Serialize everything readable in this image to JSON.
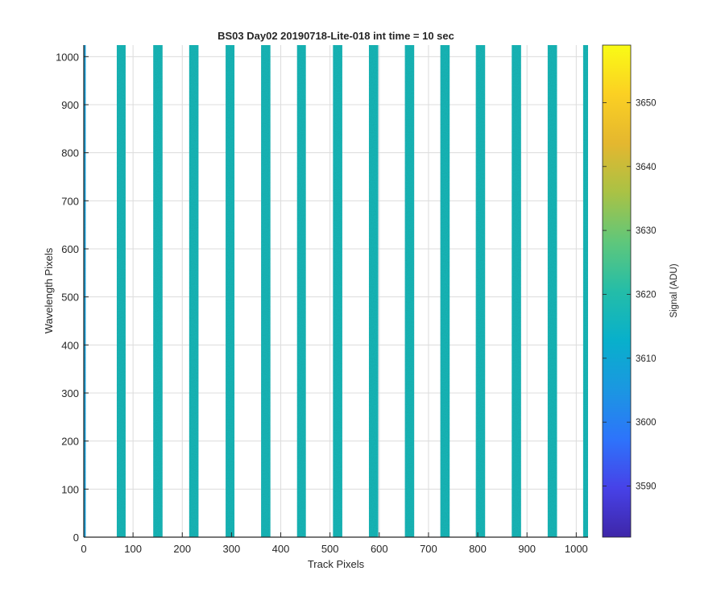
{
  "chart_data": {
    "type": "heatmap",
    "title": "BS03 Day02 20190718-Lite-018 int time = 10 sec",
    "xlabel": "Track Pixels",
    "ylabel": "Wavelength Pixels",
    "xlim": [
      0,
      1024
    ],
    "ylim": [
      0,
      1024
    ],
    "xticks": [
      0,
      100,
      200,
      300,
      400,
      500,
      600,
      700,
      800,
      900,
      1000
    ],
    "yticks": [
      0,
      100,
      200,
      300,
      400,
      500,
      600,
      700,
      800,
      900,
      1000
    ],
    "grid": true,
    "colorbar": {
      "label": "Signal (ADU)",
      "colormap": "parula",
      "range": [
        3582,
        3659
      ],
      "ticks": [
        3590,
        3600,
        3610,
        3620,
        3630,
        3640,
        3650
      ]
    },
    "stripes": [
      {
        "x_start": 0,
        "x_end": 4,
        "signal": 3608
      },
      {
        "x_start": 67,
        "x_end": 85,
        "signal": 3617
      },
      {
        "x_start": 141,
        "x_end": 160,
        "signal": 3617
      },
      {
        "x_start": 214,
        "x_end": 233,
        "signal": 3617
      },
      {
        "x_start": 288,
        "x_end": 306,
        "signal": 3617
      },
      {
        "x_start": 360,
        "x_end": 379,
        "signal": 3617
      },
      {
        "x_start": 433,
        "x_end": 451,
        "signal": 3617
      },
      {
        "x_start": 506,
        "x_end": 525,
        "signal": 3617
      },
      {
        "x_start": 579,
        "x_end": 598,
        "signal": 3617
      },
      {
        "x_start": 652,
        "x_end": 671,
        "signal": 3617
      },
      {
        "x_start": 724,
        "x_end": 743,
        "signal": 3617
      },
      {
        "x_start": 796,
        "x_end": 815,
        "signal": 3617
      },
      {
        "x_start": 869,
        "x_end": 888,
        "signal": 3617
      },
      {
        "x_start": 942,
        "x_end": 961,
        "signal": 3617
      },
      {
        "x_start": 1014,
        "x_end": 1024,
        "signal": 3617
      }
    ],
    "background_signal": null,
    "colors": {
      "stripe": "#1eb3c2",
      "grid": "#dcdcdc",
      "axis": "#262626"
    }
  }
}
